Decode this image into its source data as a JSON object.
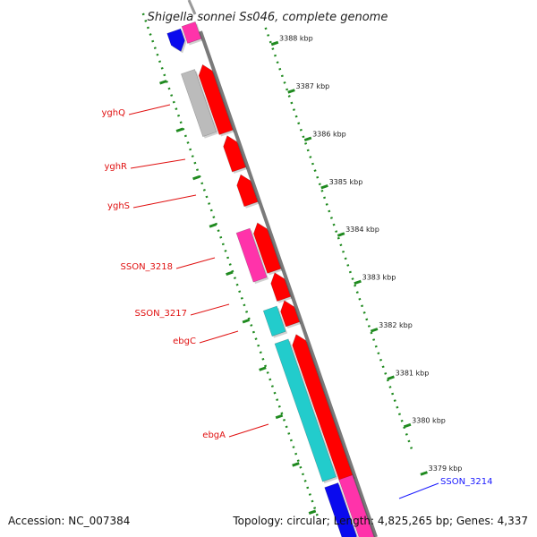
{
  "title": "Shigella sonnei Ss046, complete genome",
  "footer": {
    "accession": "Accession: NC_007384",
    "topology": "Topology: circular; Length: 4,825,265 bp; Genes: 4,337"
  },
  "colors": {
    "backbone": "#7a7a7a",
    "tick": "#1f8a1f",
    "label_red": "#e01010",
    "label_blue": "#1a1aff",
    "gene_red": "#ff0000",
    "gene_magenta": "#ff33aa",
    "gene_cyan": "#22cccc",
    "gene_gray": "#bbbbbb",
    "gene_blue": "#0a0aee"
  },
  "scale": {
    "unit": "kbp",
    "ticks": [
      "3388 kbp",
      "3387 kbp",
      "3386 kbp",
      "3385 kbp",
      "3384 kbp",
      "3383 kbp",
      "3382 kbp",
      "3381 kbp",
      "3380 kbp",
      "3379 kbp"
    ]
  },
  "gene_labels": [
    {
      "name": "yghQ",
      "color": "red"
    },
    {
      "name": "yghR",
      "color": "red"
    },
    {
      "name": "yghS",
      "color": "red"
    },
    {
      "name": "SSON_3218",
      "color": "red"
    },
    {
      "name": "SSON_3217",
      "color": "red"
    },
    {
      "name": "ebgC",
      "color": "red"
    },
    {
      "name": "ebgA",
      "color": "red"
    },
    {
      "name": "SSON_3214",
      "color": "blue"
    }
  ],
  "genes": [
    {
      "lane": "inner2",
      "color": "gene_blue",
      "arrow": "down"
    },
    {
      "lane": "inner1",
      "color": "gene_magenta",
      "arrow": "none"
    },
    {
      "lane": "inner2",
      "color": "gene_gray",
      "arrow": "none"
    },
    {
      "lane": "inner1",
      "color": "gene_red",
      "arrow": "up"
    },
    {
      "lane": "inner1",
      "color": "gene_red",
      "arrow": "up"
    },
    {
      "lane": "inner1",
      "color": "gene_red",
      "arrow": "up"
    },
    {
      "lane": "inner2",
      "color": "gene_magenta",
      "arrow": "none"
    },
    {
      "lane": "inner1",
      "color": "gene_red",
      "arrow": "up"
    },
    {
      "lane": "inner1",
      "color": "gene_red",
      "arrow": "up"
    },
    {
      "lane": "inner2",
      "color": "gene_cyan",
      "arrow": "none"
    },
    {
      "lane": "inner1",
      "color": "gene_red",
      "arrow": "up"
    },
    {
      "lane": "inner2",
      "color": "gene_cyan",
      "arrow": "none"
    },
    {
      "lane": "inner1",
      "color": "gene_red",
      "arrow": "up"
    },
    {
      "lane": "inner2",
      "color": "gene_blue",
      "arrow": "down"
    },
    {
      "lane": "inner1",
      "color": "gene_magenta",
      "arrow": "none"
    }
  ]
}
